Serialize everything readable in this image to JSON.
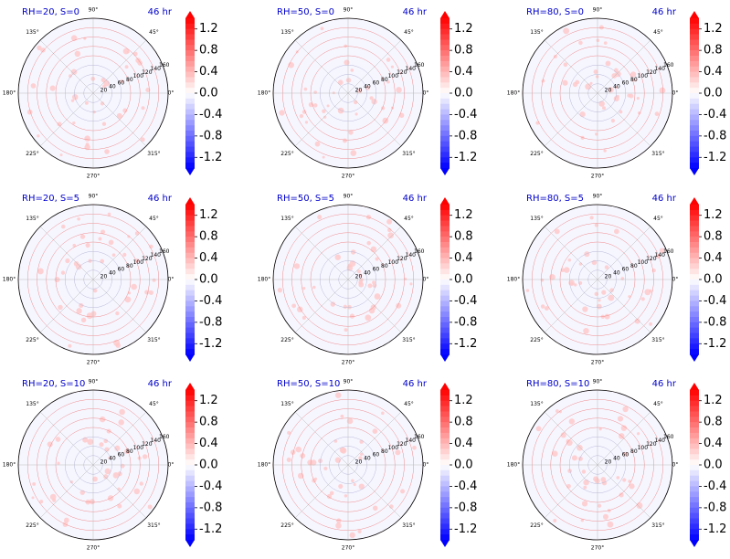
{
  "figure": {
    "time_label": "46 hr",
    "title_color": "#0000cc",
    "colormap": {
      "name": "bwr",
      "min_color": "#0000ff",
      "mid_color": "#ffffff",
      "max_color": "#ff0000",
      "ticks": [
        "1.2",
        "0.8",
        "0.4",
        "0.0",
        "-0.4",
        "-0.8",
        "-1.2"
      ]
    },
    "polar": {
      "angle_labels": [
        "0°",
        "45°",
        "90°",
        "135°",
        "180°",
        "225°",
        "270°",
        "315°"
      ],
      "radial_labels": [
        "20",
        "40",
        "60",
        "80",
        "100",
        "120",
        "140",
        "160"
      ],
      "radial_values": [
        20,
        40,
        60,
        80,
        100,
        120,
        140,
        160
      ],
      "rmax": 160,
      "grid_color_outer": "#f08c8c",
      "grid_color_inner": "#8c8cf0"
    }
  },
  "chart_data": [
    {
      "type": "heatmap",
      "title": "RH=20, S=0",
      "right_title": "46 hr",
      "rh": 20,
      "s": 0,
      "projection": "polar",
      "colorbar_range": [
        -1.4,
        1.4
      ]
    },
    {
      "type": "heatmap",
      "title": "RH=50, S=0",
      "right_title": "46 hr",
      "rh": 50,
      "s": 0,
      "projection": "polar",
      "colorbar_range": [
        -1.4,
        1.4
      ]
    },
    {
      "type": "heatmap",
      "title": "RH=80, S=0",
      "right_title": "46 hr",
      "rh": 80,
      "s": 0,
      "projection": "polar",
      "colorbar_range": [
        -1.4,
        1.4
      ]
    },
    {
      "type": "heatmap",
      "title": "RH=20, S=5",
      "right_title": "46 hr",
      "rh": 20,
      "s": 5,
      "projection": "polar",
      "colorbar_range": [
        -1.4,
        1.4
      ]
    },
    {
      "type": "heatmap",
      "title": "RH=50, S=5",
      "right_title": "46 hr",
      "rh": 50,
      "s": 5,
      "projection": "polar",
      "colorbar_range": [
        -1.4,
        1.4
      ]
    },
    {
      "type": "heatmap",
      "title": "RH=80, S=5",
      "right_title": "46 hr",
      "rh": 80,
      "s": 5,
      "projection": "polar",
      "colorbar_range": [
        -1.4,
        1.4
      ]
    },
    {
      "type": "heatmap",
      "title": "RH=20, S=10",
      "right_title": "46 hr",
      "rh": 20,
      "s": 10,
      "projection": "polar",
      "colorbar_range": [
        -1.4,
        1.4
      ]
    },
    {
      "type": "heatmap",
      "title": "RH=50, S=10",
      "right_title": "46 hr",
      "rh": 50,
      "s": 10,
      "projection": "polar",
      "colorbar_range": [
        -1.4,
        1.4
      ]
    },
    {
      "type": "heatmap",
      "title": "RH=80, S=10",
      "right_title": "46 hr",
      "rh": 80,
      "s": 10,
      "projection": "polar",
      "colorbar_range": [
        -1.4,
        1.4
      ]
    }
  ]
}
